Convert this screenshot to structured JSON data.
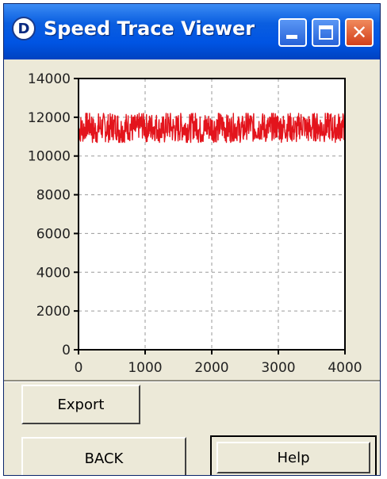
{
  "window": {
    "title": "Speed Trace Viewer",
    "app_icon_letter": "D",
    "colors": {
      "titlebar": "#0054e3",
      "close": "#d33f1a",
      "trace": "#e3141c"
    }
  },
  "titlebar_buttons": {
    "minimize_icon": "minimize-icon",
    "maximize_icon": "maximize-icon",
    "close_icon": "close-icon"
  },
  "chart_data": {
    "type": "line",
    "title": "",
    "xlabel": "",
    "ylabel": "",
    "xlim": [
      0,
      4000
    ],
    "ylim": [
      0,
      14000
    ],
    "x_ticks": [
      "0",
      "1000",
      "2000",
      "3000",
      "4000"
    ],
    "y_ticks": [
      "0",
      "2000",
      "4000",
      "6000",
      "8000",
      "10000",
      "12000",
      "14000"
    ],
    "grid": true,
    "grid_style": "dashed",
    "legend": "none",
    "series": [
      {
        "color": "#e3141c",
        "x": [
          0,
          100,
          200,
          300,
          400,
          500,
          600,
          700,
          800,
          900,
          1000,
          1100,
          1200,
          1300,
          1400,
          1500,
          1600,
          1700,
          1800,
          1900,
          2000,
          2100,
          2200,
          2300,
          2400,
          2500,
          2600,
          2700,
          2800,
          2900,
          3000,
          3100,
          3200,
          3300,
          3400,
          3500,
          3600,
          3700,
          3800,
          3900,
          4000
        ],
        "y": [
          11400,
          11600,
          11300,
          11500,
          11450,
          11550,
          11350,
          11500,
          11400,
          11600,
          11450,
          11500,
          11350,
          11550,
          11400,
          11500,
          11450,
          11600,
          11350,
          11500,
          11450,
          11550,
          11400,
          11500,
          11350,
          11600,
          11450,
          11500,
          11400,
          11550,
          11450,
          11500,
          11350,
          11600,
          11400,
          11500,
          11450,
          11550,
          11400,
          11500,
          11450
        ],
        "noise_range": [
          10700,
          12200
        ]
      }
    ]
  },
  "buttons": {
    "export_label": "Export",
    "back_label": "BACK",
    "help_label": "Help"
  }
}
